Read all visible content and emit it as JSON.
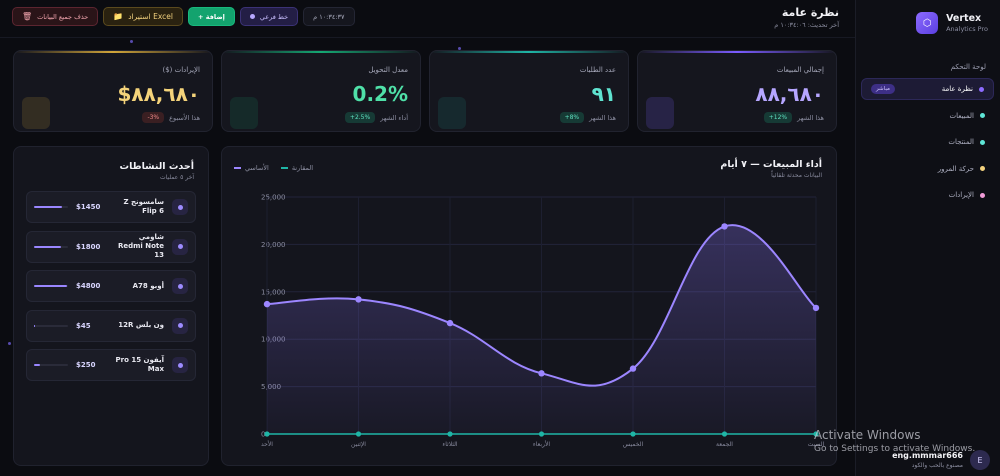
{
  "brand": {
    "name": "Vertex",
    "subtitle": "Analytics Pro",
    "logo_icon": "⬡"
  },
  "sidebar": {
    "section_title": "لوحة التحكم",
    "items": [
      {
        "label": "نظرة عامة",
        "badge": "مباشر",
        "color": "#8d6bff",
        "active": true
      },
      {
        "label": "المبيعات",
        "color": "#5ee6d6"
      },
      {
        "label": "المنتجات",
        "color": "#5ee6d6"
      },
      {
        "label": "حركة المرور",
        "color": "#f3d27e"
      },
      {
        "label": "الإيرادات",
        "color": "#f09bd8"
      }
    ]
  },
  "user": {
    "name": "eng.mmmar666",
    "subtitle": "مصنوع بالحب والكود",
    "avatar_letter": "E"
  },
  "header": {
    "title": "نظرة عامة",
    "subtitle": "آخر تحديث: ١٠:٣٤:٠٦ م"
  },
  "toolbar": {
    "clear_label": "حذف جميع البيانات",
    "clear_icon": "🗑",
    "excel_label": "استيراد Excel",
    "excel_icon": "📁",
    "add_label": "+ إضافة",
    "mode_label": "خط فرعي",
    "date_label": "١٠:٣٤:٣٧ م"
  },
  "kpis": [
    {
      "label": "إجمالي المبيعات",
      "value": "٨٨,٦٨٠",
      "period": "هذا الشهر",
      "change": "+12%",
      "color": "#b6a6ff",
      "badge_bg": "#163a35",
      "badge_color": "#5fe0c0",
      "bar": "#7b5cff"
    },
    {
      "label": "عدد الطلبات",
      "value": "٩١",
      "period": "هذا الشهر",
      "change": "+8%",
      "color": "#5fe3d0",
      "badge_bg": "#163a35",
      "badge_color": "#5fe0c0",
      "bar": "#1fb5a6"
    },
    {
      "label": "معدل التحويل",
      "value": "0.2%",
      "period": "أداء الشهر",
      "change": "+2.5%",
      "color": "#4fe0a8",
      "badge_bg": "#163a35",
      "badge_color": "#5fe0c0",
      "bar": "#15a873"
    },
    {
      "label": "الإيرادات ($)",
      "value": "$٨٨,٦٨٠",
      "period": "هذا الأسبوع",
      "change": "-3%",
      "color": "#f4d37a",
      "badge_bg": "#3a1f22",
      "badge_color": "#f08a8a",
      "bar": "#d1a53a"
    }
  ],
  "activities": {
    "title": "أحدث النشاطات",
    "subtitle": "آخر ٥ عمليات",
    "items": [
      {
        "name": "سامسونج Z Flip 6",
        "price": "$1450",
        "progress": 0.82
      },
      {
        "name": "شاومي Redmi Note 13",
        "price": "$1800",
        "progress": 0.78
      },
      {
        "name": "أوبو A78",
        "price": "$4800",
        "progress": 0.98
      },
      {
        "name": "ون بلس 12R",
        "price": "$45",
        "progress": 0.04
      },
      {
        "name": "آيفون 15 Pro Max",
        "price": "$250",
        "progress": 0.18
      }
    ]
  },
  "chart_data": {
    "type": "line",
    "title": "أداء المبيعات — ٧ أيام",
    "subtitle": "البيانات محدثة تلقائياً",
    "categories": [
      "الأحد",
      "الإثنين",
      "الثلاثاء",
      "الأربعاء",
      "الخميس",
      "الجمعة",
      "السبت"
    ],
    "series": [
      {
        "name": "الأساسي",
        "values": [
          13700,
          14200,
          11700,
          6400,
          6900,
          21900,
          13300
        ],
        "color": "#9c86ff"
      },
      {
        "name": "المقارنة",
        "values": [
          0,
          0,
          0,
          0,
          0,
          0,
          0
        ],
        "color": "#1fb5a6"
      }
    ],
    "ylim": [
      0,
      25000
    ],
    "yticks": [
      "0",
      "5,000",
      "10,000",
      "15,000",
      "20,000",
      "25,000"
    ],
    "grid": true,
    "legend": "top-left"
  },
  "watermark": {
    "line1": "Activate Windows",
    "line2": "Go to Settings to activate Windows."
  }
}
